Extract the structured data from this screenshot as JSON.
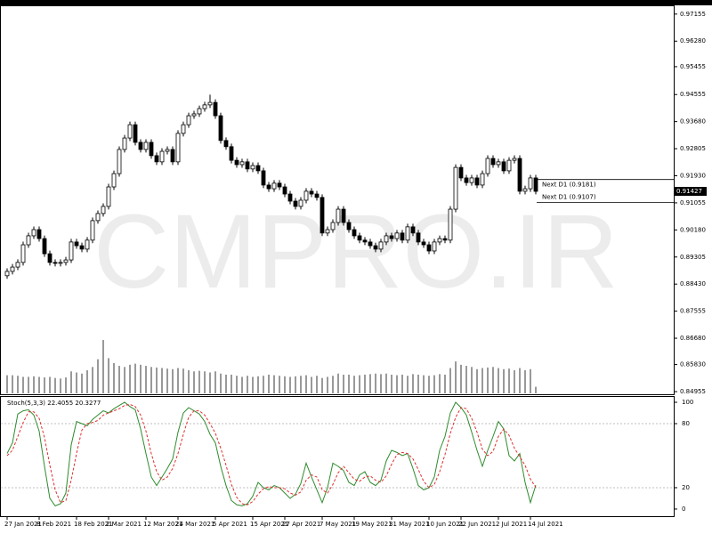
{
  "chart_data": [
    {
      "type": "candlestick",
      "watermark": "CMPRO.IR",
      "categories": [
        "27 Jan 2021",
        null,
        null,
        null,
        null,
        null,
        "8 Feb 2021",
        null,
        null,
        null,
        null,
        null,
        null,
        "18 Feb 2021",
        null,
        null,
        null,
        null,
        null,
        "2 Mar 2021",
        null,
        null,
        null,
        null,
        null,
        null,
        "12 Mar 2021",
        null,
        null,
        null,
        null,
        null,
        "24 Mar 2021",
        null,
        null,
        null,
        null,
        null,
        null,
        "5 Apr 2021",
        null,
        null,
        null,
        null,
        null,
        null,
        "15 Apr 2021",
        null,
        null,
        null,
        null,
        null,
        "27 Apr 2021",
        null,
        null,
        null,
        null,
        null,
        null,
        "7 May 2021",
        null,
        null,
        null,
        null,
        null,
        "19 May 2021",
        null,
        null,
        null,
        null,
        null,
        null,
        "31 May 2021",
        null,
        null,
        null,
        null,
        null,
        null,
        "10 Jun 2021",
        null,
        null,
        null,
        null,
        null,
        "22 Jun 2021",
        null,
        null,
        null,
        null,
        null,
        null,
        "2 Jul 2021",
        null,
        null,
        null,
        null,
        null,
        "14 Jul 2021",
        null
      ],
      "open": [
        0.887,
        0.8884,
        0.8898,
        0.8913,
        0.897,
        0.8999,
        0.9019,
        0.899,
        0.8941,
        0.8913,
        0.891,
        0.8913,
        0.8921,
        0.8979,
        0.8967,
        0.8956,
        0.8985,
        0.9048,
        0.9071,
        0.9094,
        0.9157,
        0.92,
        0.9278,
        0.9315,
        0.9358,
        0.9301,
        0.9278,
        0.9301,
        0.9258,
        0.9238,
        0.9272,
        0.9278,
        0.9238,
        0.933,
        0.9358,
        0.9387,
        0.9393,
        0.941,
        0.9422,
        0.943,
        0.9387,
        0.9307,
        0.9287,
        0.9243,
        0.9229,
        0.9238,
        0.9215,
        0.9226,
        0.9209,
        0.9163,
        0.9151,
        0.9169,
        0.9157,
        0.9134,
        0.9111,
        0.9094,
        0.9114,
        0.9143,
        0.9134,
        0.9123,
        0.9008,
        0.9019,
        0.9042,
        0.9085,
        0.9042,
        0.9019,
        0.8999,
        0.8985,
        0.8979,
        0.8967,
        0.8956,
        0.8979,
        0.8999,
        0.899,
        0.9008,
        0.8985,
        0.9028,
        0.9008,
        0.8979,
        0.897,
        0.895,
        0.8979,
        0.899,
        0.8985,
        0.9085,
        0.922,
        0.9186,
        0.9171,
        0.9186,
        0.9163,
        0.92,
        0.9249,
        0.9229,
        0.9238,
        0.9209,
        0.9243,
        0.9249,
        0.9143,
        0.9151,
        0.9186
      ],
      "high": [
        0.8894,
        0.8908,
        0.8923,
        0.898,
        0.9009,
        0.9029,
        0.9029,
        0.9,
        0.8951,
        0.8923,
        0.8923,
        0.8931,
        0.8989,
        0.8989,
        0.8977,
        0.8995,
        0.9058,
        0.9081,
        0.9104,
        0.9167,
        0.921,
        0.9288,
        0.9325,
        0.9368,
        0.9368,
        0.9311,
        0.9311,
        0.9311,
        0.9268,
        0.9282,
        0.9288,
        0.9288,
        0.934,
        0.9368,
        0.9397,
        0.9403,
        0.942,
        0.9432,
        0.9455,
        0.944,
        0.9397,
        0.9317,
        0.9297,
        0.9253,
        0.9248,
        0.9248,
        0.9236,
        0.9236,
        0.9219,
        0.9173,
        0.9179,
        0.9179,
        0.9167,
        0.9144,
        0.9121,
        0.9124,
        0.9153,
        0.9153,
        0.9144,
        0.9133,
        0.9029,
        0.9052,
        0.9095,
        0.9095,
        0.9052,
        0.9029,
        0.9009,
        0.8995,
        0.8989,
        0.8977,
        0.8989,
        0.9009,
        0.9009,
        0.9018,
        0.9018,
        0.9038,
        0.9038,
        0.9018,
        0.8989,
        0.898,
        0.8989,
        0.9,
        0.9,
        0.9095,
        0.923,
        0.923,
        0.9196,
        0.9196,
        0.9196,
        0.921,
        0.9259,
        0.9259,
        0.9248,
        0.9248,
        0.9253,
        0.9259,
        0.9259,
        0.9161,
        0.9196,
        0.9196
      ],
      "low": [
        0.886,
        0.8874,
        0.8888,
        0.8903,
        0.896,
        0.8989,
        0.898,
        0.8931,
        0.8903,
        0.89,
        0.89,
        0.8903,
        0.8911,
        0.8957,
        0.8946,
        0.8946,
        0.8975,
        0.9038,
        0.9061,
        0.9084,
        0.9147,
        0.919,
        0.9268,
        0.9305,
        0.9291,
        0.9268,
        0.9268,
        0.9248,
        0.9228,
        0.9228,
        0.9262,
        0.9228,
        0.9228,
        0.932,
        0.9348,
        0.9377,
        0.9383,
        0.94,
        0.9412,
        0.9377,
        0.9297,
        0.9277,
        0.9233,
        0.9219,
        0.9219,
        0.9205,
        0.9205,
        0.9199,
        0.9153,
        0.9141,
        0.9141,
        0.9147,
        0.9124,
        0.9101,
        0.9084,
        0.9084,
        0.9104,
        0.9124,
        0.9113,
        0.8998,
        0.8998,
        0.9009,
        0.9032,
        0.9032,
        0.9009,
        0.8989,
        0.8975,
        0.8969,
        0.8957,
        0.8946,
        0.8946,
        0.8969,
        0.898,
        0.898,
        0.8975,
        0.8975,
        0.8998,
        0.8969,
        0.896,
        0.894,
        0.894,
        0.8969,
        0.8975,
        0.8975,
        0.9075,
        0.9176,
        0.9161,
        0.9161,
        0.9153,
        0.9153,
        0.919,
        0.9219,
        0.9219,
        0.9199,
        0.9199,
        0.9233,
        0.9133,
        0.9133,
        0.9141,
        0.9133
      ],
      "close": [
        0.8884,
        0.8898,
        0.8913,
        0.897,
        0.8999,
        0.9019,
        0.899,
        0.8941,
        0.8913,
        0.891,
        0.8913,
        0.8921,
        0.8979,
        0.8967,
        0.8956,
        0.8985,
        0.9048,
        0.9071,
        0.9094,
        0.9157,
        0.92,
        0.9278,
        0.9315,
        0.9358,
        0.9301,
        0.9278,
        0.9301,
        0.9258,
        0.9238,
        0.9272,
        0.9278,
        0.9238,
        0.933,
        0.9358,
        0.9387,
        0.9393,
        0.941,
        0.9422,
        0.943,
        0.9387,
        0.9307,
        0.9287,
        0.9243,
        0.9229,
        0.9238,
        0.9215,
        0.9226,
        0.9209,
        0.9163,
        0.9151,
        0.9169,
        0.9157,
        0.9134,
        0.9111,
        0.9094,
        0.9114,
        0.9143,
        0.9134,
        0.9123,
        0.9008,
        0.9019,
        0.9042,
        0.9085,
        0.9042,
        0.9019,
        0.8999,
        0.8985,
        0.8979,
        0.8967,
        0.8956,
        0.8979,
        0.8999,
        0.899,
        0.9008,
        0.8985,
        0.9028,
        0.9008,
        0.8979,
        0.897,
        0.895,
        0.8979,
        0.899,
        0.8985,
        0.9085,
        0.922,
        0.9186,
        0.9171,
        0.9186,
        0.9163,
        0.92,
        0.9249,
        0.9229,
        0.9238,
        0.9209,
        0.9243,
        0.9249,
        0.9143,
        0.9151,
        0.9186,
        0.91427
      ],
      "volume": [
        33,
        33,
        32,
        30,
        30,
        31,
        30,
        29,
        30,
        28,
        27,
        29,
        40,
        38,
        36,
        42,
        48,
        62,
        97,
        64,
        55,
        50,
        48,
        52,
        54,
        52,
        50,
        48,
        47,
        46,
        45,
        44,
        46,
        45,
        42,
        40,
        41,
        40,
        38,
        40,
        36,
        34,
        34,
        32,
        30,
        32,
        30,
        31,
        32,
        34,
        33,
        32,
        31,
        30,
        31,
        32,
        33,
        30,
        32,
        28,
        30,
        32,
        36,
        34,
        34,
        32,
        33,
        34,
        35,
        36,
        35,
        36,
        34,
        33,
        34,
        32,
        35,
        34,
        33,
        32,
        33,
        35,
        34,
        46,
        58,
        52,
        50,
        48,
        44,
        46,
        47,
        48,
        46,
        44,
        45,
        42,
        46,
        42,
        44,
        12
      ],
      "ylim": [
        0.84898,
        0.9738
      ],
      "yticks": [
        0.97155,
        {
          "value": 0.9628,
          "label": "0.96280"
        },
        0.95455,
        0.94555,
        {
          "value": 0.9368,
          "label": "0.93680"
        },
        0.92805,
        {
          "value": 0.9193,
          "label": "0.91930"
        },
        0.91055,
        {
          "value": 0.9018,
          "label": "0.90180"
        },
        0.89305,
        {
          "value": 0.8843,
          "label": "0.88430"
        },
        0.87555,
        {
          "value": 0.8668,
          "label": "0.86680"
        },
        {
          "value": 0.8583,
          "label": "0.85830"
        },
        0.84955
      ],
      "current_price": 0.91427,
      "levels": [
        {
          "value": 0.9181,
          "label": "Next D1 (0.9181)"
        },
        {
          "value": 0.9107,
          "label": "Next D1 (0.9107)"
        }
      ]
    },
    {
      "type": "line",
      "title": "Stoch(5,3,3) 22.4055 20.3277",
      "series": [
        {
          "color": "#2e8b2e",
          "values": [
            52,
            62,
            89,
            92,
            93,
            88,
            73,
            40,
            10,
            3,
            5,
            15,
            60,
            82,
            80,
            78,
            84,
            88,
            92,
            90,
            94,
            97,
            100,
            96,
            93,
            75,
            52,
            30,
            22,
            30,
            38,
            47,
            72,
            90,
            95,
            92,
            89,
            82,
            70,
            62,
            40,
            22,
            8,
            4,
            3,
            5,
            12,
            25,
            20,
            18,
            22,
            20,
            15,
            10,
            14,
            24,
            43,
            30,
            18,
            6,
            20,
            43,
            40,
            36,
            25,
            22,
            32,
            35,
            25,
            22,
            27,
            45,
            55,
            53,
            50,
            52,
            38,
            22,
            18,
            20,
            30,
            55,
            68,
            90,
            100,
            95,
            88,
            72,
            55,
            40,
            55,
            68,
            82,
            75,
            50,
            45,
            52,
            25,
            6,
            22.4055
          ]
        },
        {
          "color": "#e03030",
          "values": [
            50,
            55,
            68,
            81,
            91,
            91,
            85,
            67,
            41,
            18,
            6,
            8,
            27,
            52,
            74,
            80,
            81,
            83,
            88,
            90,
            92,
            94,
            97,
            98,
            96,
            88,
            73,
            52,
            35,
            27,
            30,
            38,
            52,
            70,
            86,
            92,
            92,
            88,
            80,
            71,
            57,
            41,
            23,
            11,
            5,
            4,
            7,
            14,
            19,
            21,
            20,
            20,
            19,
            15,
            13,
            16,
            27,
            32,
            30,
            18,
            15,
            23,
            34,
            40,
            34,
            28,
            26,
            30,
            31,
            27,
            25,
            31,
            42,
            51,
            53,
            52,
            47,
            37,
            26,
            20,
            23,
            35,
            51,
            71,
            86,
            95,
            94,
            85,
            72,
            56,
            50,
            54,
            68,
            75,
            69,
            57,
            49,
            41,
            28,
            20.3277
          ]
        }
      ],
      "ylim": [
        -6.7,
        105
      ],
      "yticks": [
        100,
        80,
        20,
        0
      ],
      "levels": [
        80,
        20
      ]
    }
  ]
}
